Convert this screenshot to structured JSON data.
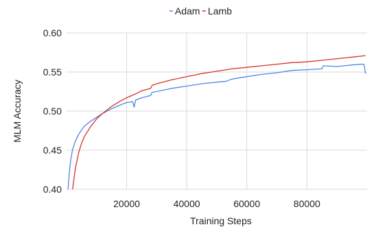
{
  "chart_data": {
    "type": "line",
    "xlabel": "Training Steps",
    "ylabel": "MLM Accuracy",
    "xlim": [
      0,
      100000
    ],
    "ylim": [
      0.4,
      0.6
    ],
    "x_ticks": [
      20000,
      40000,
      60000,
      80000
    ],
    "x_tick_labels": [
      "20000",
      "40000",
      "60000",
      "80000"
    ],
    "y_ticks": [
      0.4,
      0.45,
      0.5,
      0.55,
      0.6
    ],
    "y_tick_labels": [
      "0.40",
      "0.45",
      "0.50",
      "0.55",
      "0.60"
    ],
    "grid": true,
    "legend_position": "top-center",
    "series": [
      {
        "name": "Adam",
        "color": "#4a86e8",
        "x": [
          500,
          1000,
          1500,
          2000,
          3000,
          4000,
          5000,
          6000,
          8000,
          10000,
          12000,
          15000,
          18000,
          20000,
          22000,
          22500,
          23000,
          25000,
          28000,
          28500,
          30000,
          35000,
          40000,
          45000,
          50000,
          53000,
          55000,
          60000,
          65000,
          70000,
          75000,
          80000,
          85000,
          85500,
          90000,
          95000,
          98000,
          99000,
          99500
        ],
        "values": [
          0.4,
          0.425,
          0.44,
          0.451,
          0.462,
          0.47,
          0.476,
          0.481,
          0.487,
          0.492,
          0.497,
          0.503,
          0.508,
          0.511,
          0.512,
          0.505,
          0.514,
          0.517,
          0.52,
          0.524,
          0.525,
          0.529,
          0.532,
          0.535,
          0.537,
          0.538,
          0.541,
          0.544,
          0.547,
          0.549,
          0.552,
          0.553,
          0.554,
          0.558,
          0.557,
          0.559,
          0.56,
          0.56,
          0.548
        ]
      },
      {
        "name": "Lamb",
        "color": "#d93025",
        "x": [
          2000,
          2500,
          3000,
          4000,
          5000,
          6000,
          8000,
          10000,
          12000,
          15000,
          18000,
          20000,
          23000,
          25000,
          28000,
          28500,
          30000,
          35000,
          40000,
          45000,
          50000,
          55000,
          60000,
          65000,
          70000,
          75000,
          80000,
          85000,
          90000,
          95000,
          99500
        ],
        "values": [
          0.4,
          0.415,
          0.428,
          0.446,
          0.459,
          0.468,
          0.48,
          0.49,
          0.497,
          0.506,
          0.513,
          0.517,
          0.522,
          0.526,
          0.529,
          0.533,
          0.535,
          0.54,
          0.544,
          0.548,
          0.551,
          0.554,
          0.556,
          0.558,
          0.56,
          0.562,
          0.563,
          0.565,
          0.567,
          0.569,
          0.571
        ]
      }
    ]
  }
}
